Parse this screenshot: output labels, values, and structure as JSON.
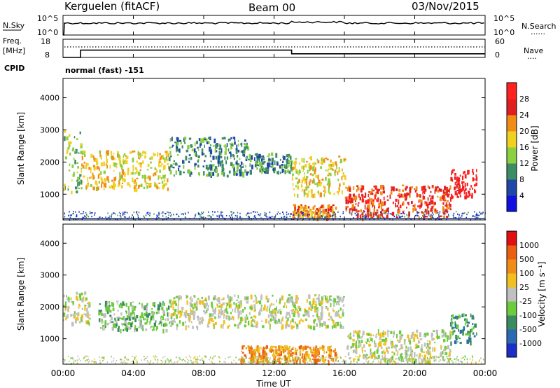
{
  "header": {
    "radar": "Kerguelen (fitACF)",
    "beam": "Beam 00",
    "date": "03/Nov/2015"
  },
  "nsky_panel": {
    "left_label": "N.Sky",
    "left_ticks": [
      "10^5",
      "10^0"
    ],
    "right_ticks": [
      "10^5",
      "10^0"
    ],
    "right_label": "N.Search",
    "right_legend": "......"
  },
  "freq_panel": {
    "left_label_1": "Freq.",
    "left_label_2": "[MHz]",
    "left_ticks": [
      "18",
      "8"
    ],
    "right_ticks": [
      "60",
      "0"
    ],
    "right_label": "Nave",
    "right_legend": "...."
  },
  "cpid": {
    "label": "CPID",
    "value": "normal (fast) -151"
  },
  "power_panel": {
    "ylabel": "Slant Range [km]",
    "yticks": [
      "4000",
      "3000",
      "2000",
      "1000"
    ],
    "colorbar_label": "Power [dB]",
    "colorbar_ticks": [
      "28",
      "24",
      "20",
      "16",
      "12",
      "8",
      "4"
    ],
    "colors": [
      "#1010e0",
      "#1f47a8",
      "#3c8c64",
      "#8ad040",
      "#f0d020",
      "#f08c18",
      "#e02020",
      "#ff2020"
    ]
  },
  "velocity_panel": {
    "ylabel": "Slant Range [km]",
    "yticks": [
      "4000",
      "3000",
      "2000",
      "1000"
    ],
    "colorbar_label": "Velocity [m s⁻¹]",
    "colorbar_ticks": [
      "1000",
      "500",
      "100",
      "25",
      "-25",
      "-100",
      "-500",
      "-1000"
    ],
    "colors": [
      "#1a2ec8",
      "#2a6ab0",
      "#3a8c60",
      "#6ccc3c",
      "#c0c0c0",
      "#f0c020",
      "#f08c18",
      "#e86010",
      "#e01010"
    ]
  },
  "xaxis": {
    "label": "Time UT",
    "ticks": [
      "00:00",
      "04:00",
      "08:00",
      "12:00",
      "16:00",
      "20:00",
      "00:00"
    ]
  },
  "chart_data": {
    "type": "heatmap",
    "x_range_hours": [
      0,
      24
    ],
    "y_range_km": [
      200,
      4600
    ],
    "freq_mhz": [
      {
        "t": 0,
        "f": 8
      },
      {
        "t": 1.0,
        "f": 12
      },
      {
        "t": 13.0,
        "f": 10
      },
      {
        "t": 24,
        "f": 10
      }
    ],
    "power_regions": [
      {
        "t0": 0.0,
        "t1": 1.0,
        "r0": 1000,
        "r1": 3000,
        "level": 3
      },
      {
        "t0": 1.0,
        "t1": 6.0,
        "r0": 1200,
        "r1": 2400,
        "level": 4
      },
      {
        "t0": 6.0,
        "t1": 10.5,
        "r0": 1600,
        "r1": 2800,
        "level": 2
      },
      {
        "t0": 10.5,
        "t1": 13.0,
        "r0": 1700,
        "r1": 2300,
        "level": 2
      },
      {
        "t0": 13.0,
        "t1": 16.0,
        "r0": 1000,
        "r1": 2200,
        "level": 4
      },
      {
        "t0": 16.0,
        "t1": 22.0,
        "r0": 300,
        "r1": 1300,
        "level": 6
      },
      {
        "t0": 22.0,
        "t1": 23.5,
        "r0": 900,
        "r1": 1800,
        "level": 7
      },
      {
        "t0": 13.0,
        "t1": 15.5,
        "r0": 300,
        "r1": 700,
        "level": 5
      }
    ],
    "velocity_regions": [
      {
        "t0": 0.0,
        "t1": 1.5,
        "r0": 1500,
        "r1": 2500,
        "level": 4
      },
      {
        "t0": 2.0,
        "t1": 6.0,
        "r0": 1300,
        "r1": 2200,
        "level": 3
      },
      {
        "t0": 6.0,
        "t1": 16.0,
        "r0": 1400,
        "r1": 2400,
        "level": 4
      },
      {
        "t0": 16.0,
        "t1": 22.0,
        "r0": 300,
        "r1": 1300,
        "level": 4
      },
      {
        "t0": 22.0,
        "t1": 23.5,
        "r0": 900,
        "r1": 1800,
        "level": 2
      },
      {
        "t0": 10.0,
        "t1": 15.5,
        "r0": 300,
        "r1": 800,
        "level": 6
      }
    ]
  }
}
